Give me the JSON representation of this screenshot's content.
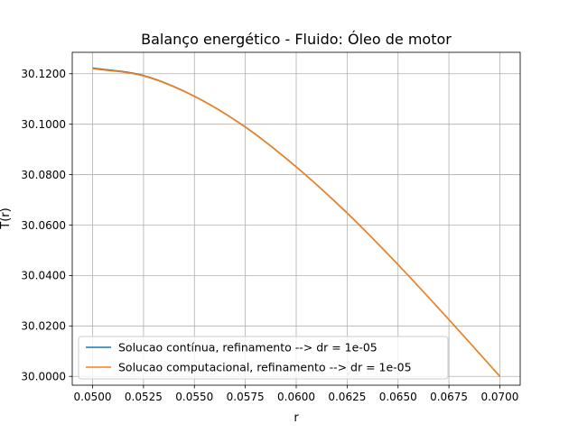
{
  "chart_data": {
    "type": "line",
    "title": "Balanço energético - Fluido: Óleo de motor",
    "xlabel": "r",
    "ylabel": "T(r)",
    "xlim": [
      0.049,
      0.071
    ],
    "ylim": [
      29.9965,
      30.1285
    ],
    "x_ticks": [
      0.05,
      0.0525,
      0.055,
      0.0575,
      0.06,
      0.0625,
      0.065,
      0.0675,
      0.07
    ],
    "x_tick_labels": [
      "0.0500",
      "0.0525",
      "0.0550",
      "0.0575",
      "0.0600",
      "0.0625",
      "0.0650",
      "0.0675",
      "0.0700"
    ],
    "y_ticks": [
      30.0,
      30.02,
      30.04,
      30.06,
      30.08,
      30.1,
      30.12
    ],
    "y_tick_labels": [
      "30.0000",
      "30.0200",
      "30.0400",
      "30.0600",
      "30.0800",
      "30.1000",
      "30.1200"
    ],
    "grid": true,
    "legend_position": "lower-left",
    "series": [
      {
        "name": "Solucao contínua, refinamento --> dr = 1e-05",
        "color": "#1f77b4",
        "x": [
          0.05,
          0.0525,
          0.055,
          0.0575,
          0.06,
          0.0625,
          0.065,
          0.0675,
          0.07
        ],
        "y": [
          30.1223,
          30.1193,
          30.1111,
          30.0989,
          30.0831,
          30.0648,
          30.0443,
          30.0225,
          30.0
        ]
      },
      {
        "name": "Solucao computacional, refinamento --> dr = 1e-05",
        "color": "#ff7f0e",
        "x": [
          0.05,
          0.0525,
          0.055,
          0.0575,
          0.06,
          0.0625,
          0.065,
          0.0675,
          0.07
        ],
        "y": [
          30.122,
          30.1191,
          30.111,
          30.0988,
          30.083,
          30.0647,
          30.0443,
          30.0225,
          30.0
        ]
      }
    ]
  }
}
